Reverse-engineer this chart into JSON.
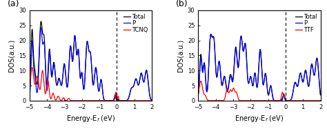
{
  "title_a": "(a)",
  "title_b": "(b)",
  "xlabel": "Energy-E$_f$ (eV)",
  "ylabel": "DOS(a.u.)",
  "xlim": [
    -5,
    2
  ],
  "ylim": [
    0,
    30
  ],
  "yticks": [
    0,
    5,
    10,
    15,
    20,
    25,
    30
  ],
  "xticks": [
    -5,
    -4,
    -3,
    -2,
    -1,
    0,
    1,
    2
  ],
  "vline": 0.0,
  "legend_a": [
    "Total",
    "P",
    "TCNQ"
  ],
  "legend_b": [
    "Total",
    "P",
    "TTF"
  ],
  "colors_Total": "black",
  "colors_P": "blue",
  "colors_mol": "red",
  "linewidth": 0.9,
  "fontsize_label": 7,
  "fontsize_tick": 6,
  "fontsize_legend": 6,
  "fontsize_panel": 9
}
